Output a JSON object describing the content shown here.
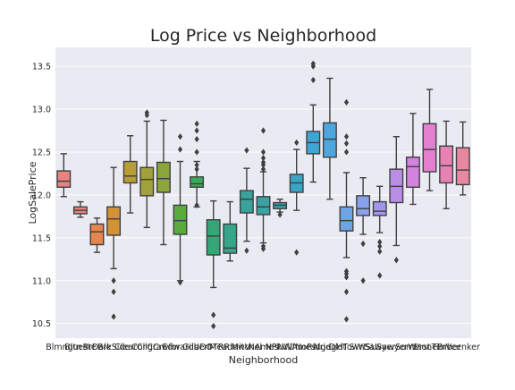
{
  "chart_data": {
    "type": "box",
    "title": "Log Price vs Neighborhood",
    "xlabel": "Neighborhood",
    "ylabel": "LogSalePrice",
    "ylim": [
      10.33,
      13.72
    ],
    "yticks": [
      10.5,
      11.0,
      11.5,
      12.0,
      12.5,
      13.0,
      13.5
    ],
    "ytick_labels": [
      "10.5",
      "11.0",
      "11.5",
      "12.0",
      "12.5",
      "13.0",
      "13.5"
    ],
    "grid": true,
    "categories": [
      "Blmngtn",
      "Blueste",
      "BrDale",
      "BrkSide",
      "ClearCr",
      "CollgCr",
      "Crawfor",
      "Edwards",
      "Gilbert",
      "IDOTRR",
      "MeadowV",
      "Mitchel",
      "NAmes",
      "NPkVill",
      "NWAmes",
      "NoRidge",
      "NridgHt",
      "OldTown",
      "SWISU",
      "Sawyer",
      "SawyerW",
      "Somerst",
      "StoneBr",
      "Timber",
      "Veenker"
    ],
    "boxes": [
      {
        "q1": 12.09,
        "med": 12.16,
        "q3": 12.28,
        "whislo": 11.98,
        "whishi": 12.48,
        "fliers": [],
        "color": "#e8837f"
      },
      {
        "q1": 11.78,
        "med": 11.82,
        "q3": 11.86,
        "whislo": 11.74,
        "whishi": 11.92,
        "fliers": [],
        "color": "#e8837f"
      },
      {
        "q1": 11.42,
        "med": 11.57,
        "q3": 11.66,
        "whislo": 11.33,
        "whishi": 11.73,
        "fliers": [],
        "color": "#e7854f"
      },
      {
        "q1": 11.53,
        "med": 11.72,
        "q3": 11.86,
        "whislo": 11.14,
        "whishi": 12.32,
        "fliers": [
          11.0,
          10.87,
          10.58
        ],
        "color": "#d49238"
      },
      {
        "q1": 12.14,
        "med": 12.22,
        "q3": 12.39,
        "whislo": 11.79,
        "whishi": 12.69,
        "fliers": [],
        "color": "#b99d36"
      },
      {
        "q1": 11.99,
        "med": 12.18,
        "q3": 12.32,
        "whislo": 11.62,
        "whishi": 12.86,
        "fliers": [
          12.96,
          12.93
        ],
        "color": "#a3a13b"
      },
      {
        "q1": 12.03,
        "med": 12.19,
        "q3": 12.38,
        "whislo": 11.42,
        "whishi": 12.87,
        "fliers": [],
        "color": "#8aa63c"
      },
      {
        "q1": 11.54,
        "med": 11.7,
        "q3": 11.88,
        "whislo": 11.0,
        "whishi": 12.39,
        "fliers": [
          12.68,
          12.53,
          10.98
        ],
        "color": "#5aab3c"
      },
      {
        "q1": 12.09,
        "med": 12.13,
        "q3": 12.21,
        "whislo": 11.86,
        "whishi": 12.39,
        "fliers": [
          12.83,
          12.75,
          12.65,
          12.5,
          12.35,
          12.3,
          11.88
        ],
        "color": "#3aaa5a"
      },
      {
        "q1": 11.3,
        "med": 11.52,
        "q3": 11.71,
        "whislo": 10.92,
        "whishi": 11.93,
        "fliers": [
          10.6,
          10.47
        ],
        "color": "#35a776"
      },
      {
        "q1": 11.32,
        "med": 11.38,
        "q3": 11.66,
        "whislo": 11.23,
        "whishi": 11.92,
        "fliers": [],
        "color": "#36a58a"
      },
      {
        "q1": 11.79,
        "med": 11.95,
        "q3": 12.05,
        "whislo": 11.46,
        "whishi": 12.31,
        "fliers": [
          12.52,
          11.35
        ],
        "color": "#38a39a"
      },
      {
        "q1": 11.77,
        "med": 11.86,
        "q3": 11.98,
        "whislo": 11.44,
        "whishi": 12.27,
        "fliers": [
          12.75,
          12.5,
          12.43,
          12.38,
          12.35,
          12.3,
          11.4,
          11.37
        ],
        "color": "#39a2a5"
      },
      {
        "q1": 11.84,
        "med": 11.88,
        "q3": 11.91,
        "whislo": 11.8,
        "whishi": 11.95,
        "fliers": [
          11.77
        ],
        "color": "#3aa1b1"
      },
      {
        "q1": 12.03,
        "med": 12.14,
        "q3": 12.24,
        "whislo": 11.82,
        "whishi": 12.53,
        "fliers": [
          12.61,
          11.33
        ],
        "color": "#3ba3c4"
      },
      {
        "q1": 12.48,
        "med": 12.61,
        "q3": 12.74,
        "whislo": 12.15,
        "whishi": 13.05,
        "fliers": [
          13.53,
          13.5,
          13.34
        ],
        "color": "#3da6d6"
      },
      {
        "q1": 12.44,
        "med": 12.65,
        "q3": 12.84,
        "whislo": 11.95,
        "whishi": 13.36,
        "fliers": [],
        "color": "#4ea6df"
      },
      {
        "q1": 11.58,
        "med": 11.7,
        "q3": 11.86,
        "whislo": 11.27,
        "whishi": 12.26,
        "fliers": [
          13.08,
          12.68,
          12.6,
          12.5,
          11.11,
          11.08,
          11.04,
          10.87,
          10.55
        ],
        "color": "#6ea3e5"
      },
      {
        "q1": 11.76,
        "med": 11.84,
        "q3": 11.99,
        "whislo": 11.54,
        "whishi": 12.2,
        "fliers": [
          11.43,
          11.0
        ],
        "color": "#89a0ec"
      },
      {
        "q1": 11.76,
        "med": 11.81,
        "q3": 11.92,
        "whislo": 11.56,
        "whishi": 12.1,
        "fliers": [
          11.45,
          11.4,
          11.34,
          11.06
        ],
        "color": "#a195ec"
      },
      {
        "q1": 11.91,
        "med": 12.1,
        "q3": 12.3,
        "whislo": 11.41,
        "whishi": 12.68,
        "fliers": [
          11.24
        ],
        "color": "#bb8ee6"
      },
      {
        "q1": 12.09,
        "med": 12.33,
        "q3": 12.44,
        "whislo": 11.89,
        "whishi": 12.95,
        "fliers": [],
        "color": "#d283de"
      },
      {
        "q1": 12.27,
        "med": 12.53,
        "q3": 12.83,
        "whislo": 12.05,
        "whishi": 13.23,
        "fliers": [],
        "color": "#e27fcf"
      },
      {
        "q1": 12.14,
        "med": 12.34,
        "q3": 12.57,
        "whislo": 11.84,
        "whishi": 12.86,
        "fliers": [],
        "color": "#e882b4"
      },
      {
        "q1": 12.12,
        "med": 12.29,
        "q3": 12.55,
        "whislo": 12.0,
        "whishi": 12.85,
        "fliers": [],
        "color": "#e887a0"
      }
    ]
  }
}
